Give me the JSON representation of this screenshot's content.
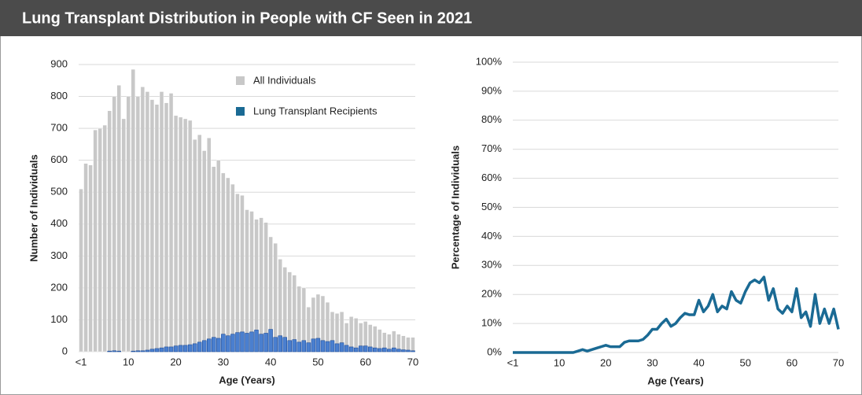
{
  "title": "Lung Transplant Distribution in People with CF Seen in 2021",
  "chart_data": [
    {
      "type": "bar",
      "xlabel": "Age (Years)",
      "ylabel": "Number of Individuals",
      "categories": [
        "<1",
        null,
        null,
        null,
        null,
        null,
        null,
        null,
        null,
        null,
        "10",
        null,
        null,
        null,
        null,
        null,
        null,
        null,
        null,
        null,
        "20",
        null,
        null,
        null,
        null,
        null,
        null,
        null,
        null,
        null,
        "30",
        null,
        null,
        null,
        null,
        null,
        null,
        null,
        null,
        null,
        "40",
        null,
        null,
        null,
        null,
        null,
        null,
        null,
        null,
        null,
        "50",
        null,
        null,
        null,
        null,
        null,
        null,
        null,
        null,
        null,
        "60",
        null,
        null,
        null,
        null,
        null,
        null,
        null,
        null,
        null,
        "70"
      ],
      "series": [
        {
          "name": "All Individuals",
          "color": "#c8c8c8",
          "values": [
            510,
            590,
            585,
            695,
            700,
            710,
            755,
            800,
            835,
            730,
            800,
            885,
            800,
            830,
            815,
            790,
            775,
            815,
            780,
            810,
            740,
            735,
            730,
            725,
            665,
            680,
            630,
            670,
            580,
            600,
            560,
            545,
            525,
            495,
            490,
            445,
            440,
            415,
            420,
            405,
            360,
            340,
            290,
            265,
            250,
            240,
            205,
            200,
            140,
            170,
            180,
            175,
            155,
            125,
            120,
            125,
            90,
            110,
            105,
            90,
            95,
            85,
            80,
            70,
            60,
            55,
            65,
            55,
            50,
            45,
            45
          ]
        },
        {
          "name": "Lung Transplant Recipients",
          "color": "#4a7fcf",
          "values": [
            0,
            0,
            0,
            0,
            0,
            0,
            2,
            3,
            2,
            0,
            0,
            2,
            3,
            3,
            5,
            8,
            10,
            12,
            15,
            15,
            18,
            20,
            20,
            22,
            25,
            30,
            35,
            40,
            45,
            42,
            55,
            50,
            55,
            60,
            62,
            58,
            62,
            68,
            55,
            58,
            70,
            45,
            50,
            45,
            35,
            38,
            30,
            35,
            28,
            40,
            42,
            35,
            32,
            35,
            25,
            28,
            20,
            15,
            12,
            18,
            18,
            15,
            12,
            10,
            12,
            8,
            12,
            8,
            6,
            5,
            3
          ]
        }
      ],
      "ylim": [
        0,
        900
      ],
      "yticks": [
        0,
        100,
        200,
        300,
        400,
        500,
        600,
        700,
        800,
        900
      ],
      "grid": true,
      "legend": "upper right"
    },
    {
      "type": "line",
      "xlabel": "Age (Years)",
      "ylabel": "Percentage of Individuals",
      "categories": [
        "<1",
        null,
        null,
        null,
        null,
        null,
        null,
        null,
        null,
        null,
        "10",
        null,
        null,
        null,
        null,
        null,
        null,
        null,
        null,
        null,
        "20",
        null,
        null,
        null,
        null,
        null,
        null,
        null,
        null,
        null,
        "30",
        null,
        null,
        null,
        null,
        null,
        null,
        null,
        null,
        null,
        "40",
        null,
        null,
        null,
        null,
        null,
        null,
        null,
        null,
        null,
        "50",
        null,
        null,
        null,
        null,
        null,
        null,
        null,
        null,
        null,
        "60",
        null,
        null,
        null,
        null,
        null,
        null,
        null,
        null,
        null,
        "70"
      ],
      "color": "#1a6a94",
      "values": [
        0,
        0,
        0,
        0,
        0,
        0,
        0,
        0,
        0,
        0,
        0,
        0,
        0,
        0,
        0.5,
        1,
        0.5,
        1,
        1.5,
        2,
        2.5,
        2,
        2,
        2,
        3.5,
        4,
        4,
        4,
        4.5,
        6,
        8,
        8,
        10,
        11.5,
        9,
        10,
        12,
        13.5,
        13,
        13,
        18,
        14,
        16,
        20,
        14,
        16,
        15,
        21,
        18,
        17,
        21,
        24,
        25,
        24,
        26,
        18,
        22,
        15,
        13.5,
        16,
        14,
        22,
        12,
        14,
        9,
        20,
        10,
        15,
        10,
        15,
        8
      ],
      "ylim": [
        0,
        100
      ],
      "yticks": [
        {
          "value": 0,
          "label": "0%"
        },
        {
          "value": 10,
          "label": "10%"
        },
        {
          "value": 20,
          "label": "20%"
        },
        {
          "value": 30,
          "label": "30%"
        },
        {
          "value": 40,
          "label": "40%"
        },
        {
          "value": 50,
          "label": "50%"
        },
        {
          "value": 60,
          "label": "60%"
        },
        {
          "value": 70,
          "label": "70%"
        },
        {
          "value": 80,
          "label": "80%"
        },
        {
          "value": 90,
          "label": "90%"
        },
        {
          "value": 100,
          "label": "100%"
        }
      ],
      "grid": true
    }
  ]
}
